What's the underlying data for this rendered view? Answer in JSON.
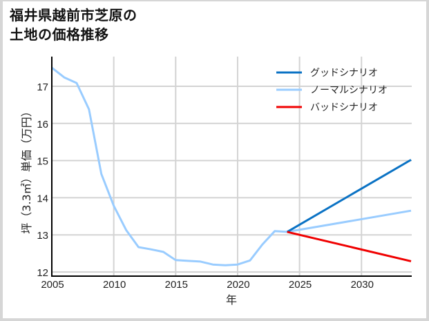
{
  "title_line1": "福井県越前市芝原の",
  "title_line2": "土地の価格推移",
  "chart_data": {
    "type": "line",
    "title": "福井県越前市芝原の土地の価格推移",
    "xlabel": "年",
    "ylabel": "坪（3.3㎡）単価（万円）",
    "xlim": [
      2005,
      2034
    ],
    "ylim": [
      11.9,
      17.8
    ],
    "x_ticks": [
      2005,
      2010,
      2015,
      2020,
      2025,
      2030
    ],
    "y_ticks": [
      12,
      13,
      14,
      15,
      16,
      17
    ],
    "grid": true,
    "legend_position": "upper right",
    "series": [
      {
        "name": "グッドシナリオ",
        "color": "#0a72c4",
        "x": [
          2024,
          2034
        ],
        "values": [
          13.08,
          15.02
        ]
      },
      {
        "name": "ノーマルシナリオ",
        "color": "#99ccff",
        "x": [
          2005,
          2006,
          2007,
          2008,
          2009,
          2010,
          2011,
          2012,
          2013,
          2014,
          2015,
          2016,
          2017,
          2018,
          2019,
          2020,
          2021,
          2022,
          2023,
          2024,
          2034
        ],
        "values": [
          17.5,
          17.24,
          17.09,
          16.38,
          14.64,
          13.78,
          13.13,
          12.67,
          12.61,
          12.54,
          12.32,
          12.3,
          12.28,
          12.2,
          12.18,
          12.2,
          12.31,
          12.74,
          13.1,
          13.08,
          13.65
        ]
      },
      {
        "name": "バッドシナリオ",
        "color": "#f00000",
        "x": [
          2024,
          2034
        ],
        "values": [
          13.08,
          12.29
        ]
      }
    ]
  },
  "legend": [
    {
      "label": "グッドシナリオ",
      "color": "#0a72c4"
    },
    {
      "label": "ノーマルシナリオ",
      "color": "#99ccff"
    },
    {
      "label": "バッドシナリオ",
      "color": "#f00000"
    }
  ]
}
